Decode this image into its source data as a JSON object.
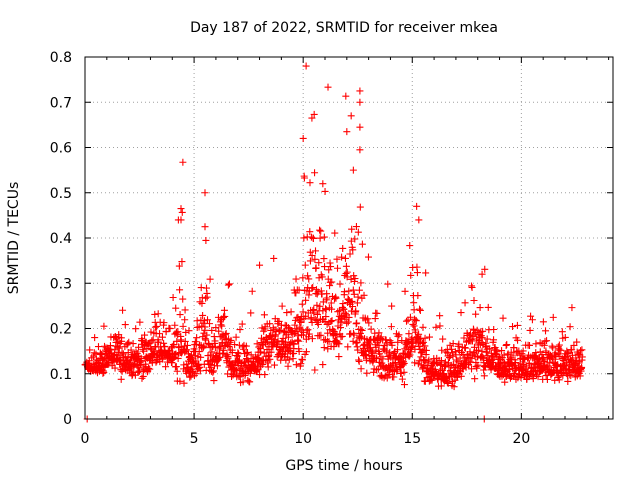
{
  "chart_data": {
    "type": "scatter",
    "title": "Day 187 of 2022, SRMTID for receiver mkea",
    "xlabel": "GPS time / hours",
    "ylabel": "SRMTID / TECUs",
    "xlim": [
      0,
      24.2
    ],
    "ylim": [
      0,
      0.8
    ],
    "xticks": [
      0,
      5,
      10,
      15,
      20
    ],
    "xtick_labels": [
      "0",
      "5",
      "10",
      "15",
      "20"
    ],
    "yticks": [
      0,
      0.1,
      0.2,
      0.3,
      0.4,
      0.5,
      0.6,
      0.7,
      0.8
    ],
    "ytick_labels": [
      "0",
      "0.1",
      "0.2",
      "0.3",
      "0.4",
      "0.5",
      "0.6",
      "0.7",
      "0.8"
    ],
    "grid": true,
    "marker": "plus",
    "color": "#ff0000",
    "series": [
      {
        "name": "SRMTID mkea",
        "profile": {
          "description": "Dense scatter of ~2000 points from 0 to ~22.8 h; values mostly 0.05–0.25 TECU with enhanced activity near 4.5 h, 5.5 h, 9.5–13 h and 15 h",
          "x_range": [
            0,
            22.8
          ],
          "typical_band": [
            0.05,
            0.25
          ]
        },
        "notable_points": [
          {
            "x": 0.1,
            "y": 0.0
          },
          {
            "x": 4.4,
            "y": 0.465
          },
          {
            "x": 4.4,
            "y": 0.44
          },
          {
            "x": 5.5,
            "y": 0.5
          },
          {
            "x": 5.5,
            "y": 0.425
          },
          {
            "x": 8.0,
            "y": 0.34
          },
          {
            "x": 10.0,
            "y": 0.62
          },
          {
            "x": 10.4,
            "y": 0.665
          },
          {
            "x": 10.9,
            "y": 0.52
          },
          {
            "x": 12.0,
            "y": 0.635
          },
          {
            "x": 12.2,
            "y": 0.67
          },
          {
            "x": 12.3,
            "y": 0.55
          },
          {
            "x": 12.6,
            "y": 0.725
          },
          {
            "x": 12.6,
            "y": 0.7
          },
          {
            "x": 12.6,
            "y": 0.645
          },
          {
            "x": 12.6,
            "y": 0.595
          },
          {
            "x": 15.2,
            "y": 0.47
          },
          {
            "x": 15.3,
            "y": 0.44
          },
          {
            "x": 18.2,
            "y": 0.32
          },
          {
            "x": 18.3,
            "y": 0.0
          }
        ]
      }
    ]
  }
}
